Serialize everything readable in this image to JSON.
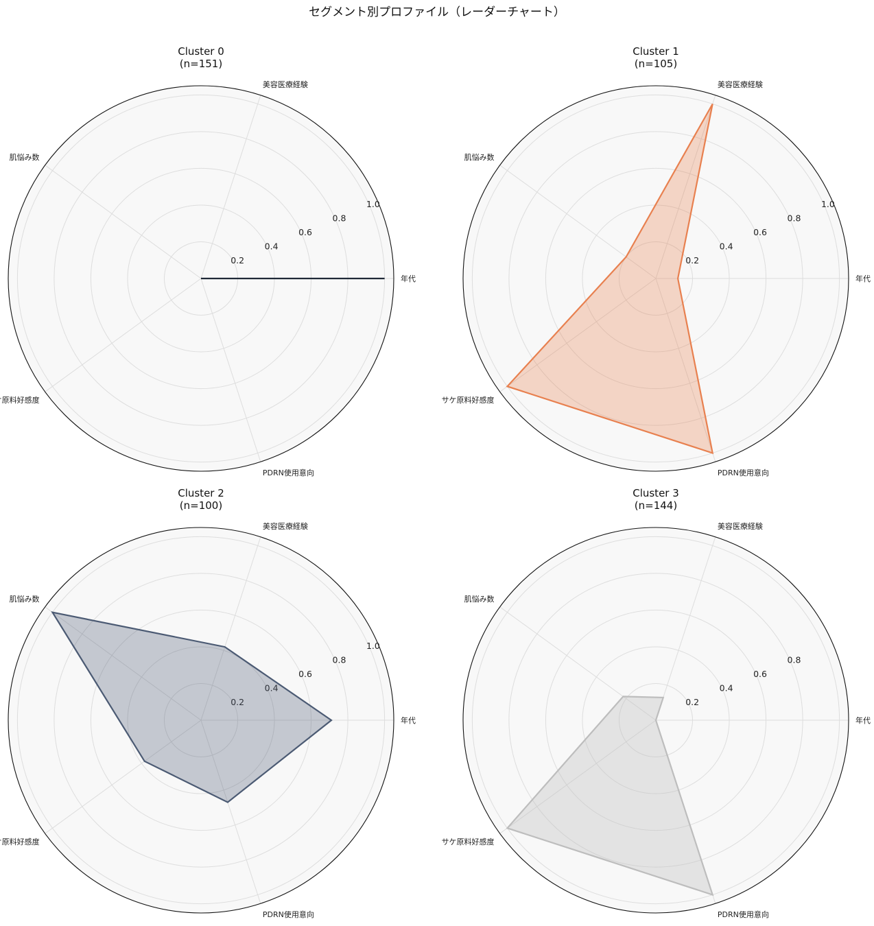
{
  "chart_data": {
    "type": "radar",
    "title": "セグメント別プロファイル（レーダーチャート）",
    "axes": [
      "年代",
      "美容医療経験",
      "肌悩み数",
      "サケ原料好感度",
      "PDRN使用意向"
    ],
    "rlabels": [
      "0.2",
      "0.4",
      "0.6",
      "0.8",
      "1.0"
    ],
    "grid": true,
    "panels": [
      {
        "title": "Cluster 0",
        "subtitle": "(n=151)",
        "color": "#1f2937",
        "fill": "#1f2937",
        "fill_opacity": 0.0,
        "rlim": [
          0.0,
          1.05
        ],
        "values": [
          1.0,
          0.0,
          0.0,
          0.0,
          0.0
        ],
        "ticks": [
          "0.2",
          "0.4",
          "0.6",
          "0.8",
          "1.0"
        ]
      },
      {
        "title": "Cluster 1",
        "subtitle": "(n=105)",
        "color": "#e8804f",
        "fill": "#e8804f",
        "fill_opacity": 0.3,
        "rlim": [
          0.0,
          1.05
        ],
        "values": [
          0.12,
          1.0,
          0.2,
          1.0,
          1.0
        ],
        "ticks": [
          "0.2",
          "0.4",
          "0.6",
          "0.8",
          "1.0"
        ]
      },
      {
        "title": "Cluster 2",
        "subtitle": "(n=100)",
        "color": "#4b5a73",
        "fill": "#4b5a73",
        "fill_opacity": 0.3,
        "rlim": [
          0.0,
          1.05
        ],
        "values": [
          0.71,
          0.42,
          1.0,
          0.38,
          0.47
        ],
        "ticks": [
          "0.2",
          "0.4",
          "0.6",
          "0.8",
          "1.0"
        ]
      },
      {
        "title": "Cluster 3",
        "subtitle": "(n=144)",
        "color": "#bdbdbd",
        "fill": "#bdbdbd",
        "fill_opacity": 0.35,
        "rlim": [
          0.0,
          1.05
        ],
        "values": [
          0.0,
          0.13,
          0.22,
          1.0,
          1.0
        ],
        "ticks": [
          "0.2",
          "0.4",
          "0.6",
          "0.8"
        ]
      }
    ]
  }
}
